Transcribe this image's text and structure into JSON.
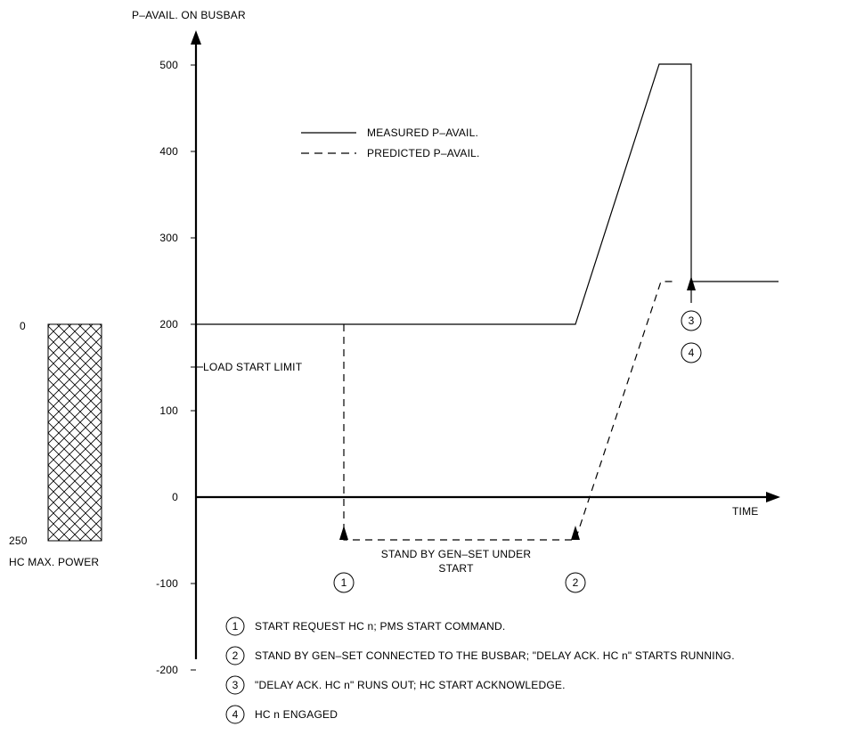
{
  "chart_data": {
    "type": "line",
    "title": "",
    "ylabel": "P–AVAIL. ON BUSBAR",
    "xlabel": "TIME",
    "ylim": [
      -200,
      500
    ],
    "y_ticks": [
      "500",
      "400",
      "300",
      "200",
      "100",
      "0",
      "-100",
      "-200"
    ],
    "y_tick_values": [
      500,
      400,
      300,
      200,
      100,
      0,
      -100,
      -200
    ],
    "load_start_limit_label": "LOAD START LIMIT",
    "series": [
      {
        "name": "MEASURED P–AVAIL.",
        "style": "solid"
      },
      {
        "name": "PREDICTED P–AVAIL.",
        "style": "dashed"
      }
    ],
    "stand_by_annotation": [
      "STAND BY GEN–SET UNDER",
      "START"
    ],
    "markers": [
      "1",
      "2",
      "3",
      "4"
    ],
    "notes": [
      {
        "num": "1",
        "text": "START REQUEST HC n; PMS START COMMAND."
      },
      {
        "num": "2",
        "text": "STAND BY GEN–SET CONNECTED TO THE BUSBAR; \"DELAY ACK. HC n\" STARTS RUNNING."
      },
      {
        "num": "3",
        "text": "\"DELAY ACK. HC n\" RUNS OUT; HC START ACKNOWLEDGE."
      },
      {
        "num": "4",
        "text": "HC n ENGAGED"
      }
    ],
    "hc_bar": {
      "top_label": "0",
      "bottom_label": "250",
      "caption": "HC MAX. POWER"
    }
  }
}
